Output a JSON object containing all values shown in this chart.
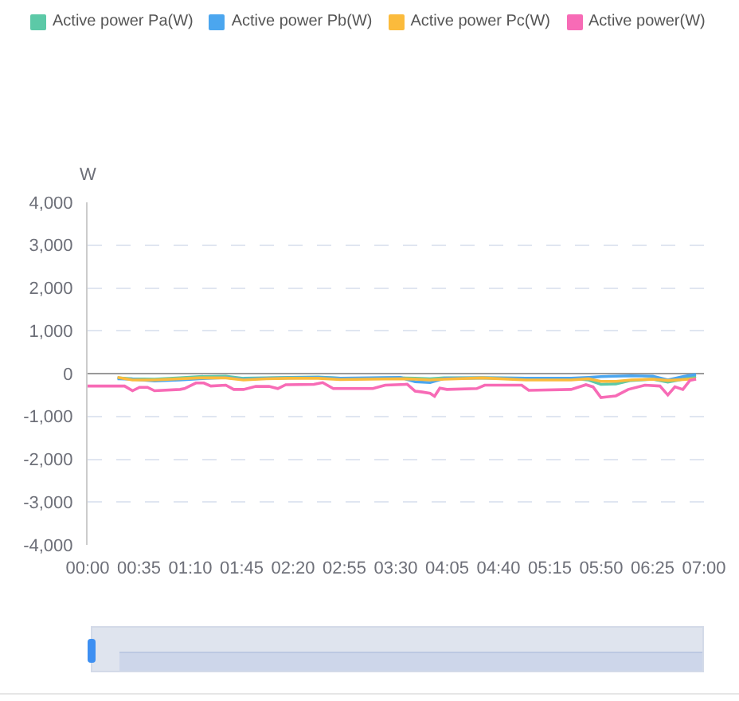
{
  "chart_data": {
    "type": "line",
    "ylabel": "W",
    "legend": "top left",
    "grid": "y",
    "xlim": [
      0,
      7
    ],
    "xticks": [
      {
        "value": 0,
        "label": "00:00"
      },
      {
        "value": 0.5833,
        "label": "00:35"
      },
      {
        "value": 1.1667,
        "label": "01:10"
      },
      {
        "value": 1.75,
        "label": "01:45"
      },
      {
        "value": 2.3333,
        "label": "02:20"
      },
      {
        "value": 2.9167,
        "label": "02:55"
      },
      {
        "value": 3.5,
        "label": "03:30"
      },
      {
        "value": 4.0833,
        "label": "04:05"
      },
      {
        "value": 4.6667,
        "label": "04:40"
      },
      {
        "value": 5.25,
        "label": "05:15"
      },
      {
        "value": 5.8333,
        "label": "05:50"
      },
      {
        "value": 6.4167,
        "label": "06:25"
      },
      {
        "value": 7,
        "label": "07:00"
      }
    ],
    "ylim": [
      -4000,
      4000
    ],
    "yticks": [
      {
        "value": -4000,
        "label": "-4,000"
      },
      {
        "value": -3000,
        "label": "-3,000"
      },
      {
        "value": -2000,
        "label": "-2,000"
      },
      {
        "value": -1000,
        "label": "-1,000"
      },
      0,
      {
        "value": 1000,
        "label": "1,000"
      },
      {
        "value": 2000,
        "label": "2,000"
      },
      {
        "value": 3000,
        "label": "3,000"
      },
      {
        "value": 4000,
        "label": "4,000"
      }
    ],
    "series": [
      {
        "name": "Active power Pa(W)",
        "color": "#5cc9a7",
        "x": [
          0.34,
          0.51,
          0.76,
          1.05,
          1.27,
          1.57,
          1.77,
          2.03,
          2.28,
          2.62,
          2.87,
          3.21,
          3.55,
          3.72,
          3.89,
          4.05,
          4.48,
          4.98,
          5.49,
          5.69,
          5.83,
          6.0,
          6.17,
          6.42,
          6.59,
          6.76,
          6.91
        ],
        "values": [
          -100,
          -120,
          -130,
          -100,
          -70,
          -60,
          -110,
          -100,
          -90,
          -80,
          -110,
          -110,
          -100,
          -110,
          -120,
          -100,
          -100,
          -110,
          -110,
          -150,
          -250,
          -240,
          -160,
          -130,
          -200,
          -130,
          -60
        ]
      },
      {
        "name": "Active power Pb(W)",
        "color": "#4ba6ef",
        "x": [
          0.34,
          0.51,
          0.76,
          1.05,
          1.27,
          1.57,
          1.77,
          2.03,
          2.28,
          2.62,
          2.87,
          3.21,
          3.55,
          3.72,
          3.89,
          4.05,
          4.48,
          4.98,
          5.49,
          5.69,
          5.83,
          6.0,
          6.17,
          6.42,
          6.59,
          6.76,
          6.91
        ],
        "values": [
          -120,
          -130,
          -170,
          -150,
          -120,
          -90,
          -130,
          -110,
          -100,
          -90,
          -110,
          -100,
          -90,
          -190,
          -210,
          -110,
          -100,
          -110,
          -110,
          -90,
          -70,
          -60,
          -50,
          -60,
          -150,
          -70,
          -20
        ]
      },
      {
        "name": "Active power Pc(W)",
        "color": "#fbbb3c",
        "x": [
          0.34,
          0.51,
          0.76,
          1.05,
          1.27,
          1.57,
          1.77,
          2.03,
          2.28,
          2.62,
          2.87,
          3.21,
          3.55,
          3.72,
          3.89,
          4.05,
          4.48,
          4.98,
          5.49,
          5.69,
          5.83,
          6.0,
          6.17,
          6.42,
          6.59,
          6.76,
          6.91
        ],
        "values": [
          -90,
          -150,
          -150,
          -120,
          -100,
          -100,
          -150,
          -120,
          -110,
          -110,
          -140,
          -130,
          -120,
          -130,
          -150,
          -130,
          -100,
          -150,
          -150,
          -120,
          -180,
          -180,
          -150,
          -130,
          -160,
          -140,
          -120
        ]
      },
      {
        "name": "Active power(W)",
        "color": "#f76bb6",
        "x": [
          0,
          0.42,
          0.51,
          0.59,
          0.68,
          0.76,
          1.05,
          1.1,
          1.23,
          1.32,
          1.4,
          1.57,
          1.66,
          1.77,
          1.91,
          2.06,
          2.16,
          2.25,
          2.57,
          2.67,
          2.79,
          3.24,
          3.38,
          3.63,
          3.72,
          3.8,
          3.89,
          3.94,
          4.0,
          4.08,
          4.42,
          4.51,
          4.93,
          5.01,
          5.49,
          5.66,
          5.74,
          5.83,
          6.0,
          6.14,
          6.33,
          6.5,
          6.59,
          6.67,
          6.76,
          6.84,
          6.91
        ],
        "values": [
          -290,
          -290,
          -400,
          -320,
          -320,
          -400,
          -370,
          -350,
          -220,
          -220,
          -290,
          -270,
          -370,
          -370,
          -300,
          -300,
          -350,
          -260,
          -250,
          -210,
          -350,
          -350,
          -270,
          -250,
          -410,
          -430,
          -460,
          -530,
          -340,
          -370,
          -350,
          -270,
          -270,
          -390,
          -370,
          -260,
          -310,
          -560,
          -520,
          -370,
          -270,
          -290,
          -500,
          -310,
          -370,
          -160,
          -130
        ]
      }
    ]
  }
}
